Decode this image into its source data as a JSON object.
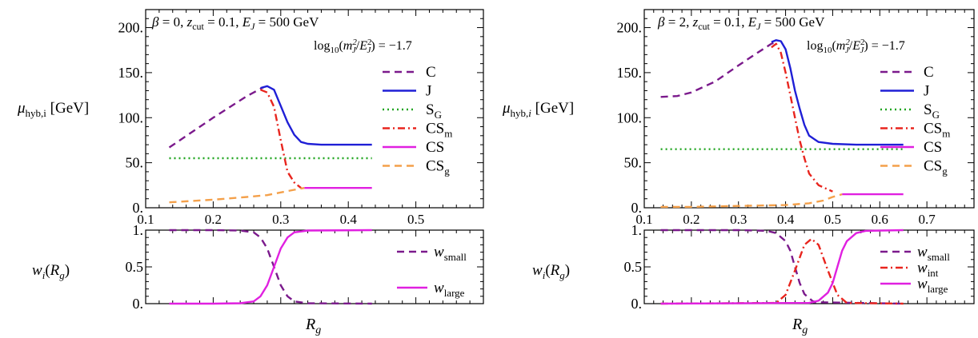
{
  "chart_data": [
    {
      "type": "line",
      "panel": "top",
      "title": "β = 0, z_cut = 0.1, E_J = 500 GeV",
      "annotation": "log10(m_J^2/E_J^2) = −1.7",
      "ylabel": "μ_hyb,i [GeV]",
      "xlim": [
        0.1,
        0.6
      ],
      "ylim": [
        0,
        220
      ],
      "xticks": [
        "0.1",
        "0.2",
        "0.3",
        "0.4",
        "0.5"
      ],
      "yticks": [
        "0.",
        "50.",
        "100.",
        "150.",
        "200."
      ],
      "legend_position": "right",
      "series": [
        {
          "name": "C",
          "color": "#7b1a8c",
          "dash": "dashed",
          "x": [
            0.135,
            0.2,
            0.25,
            0.275
          ],
          "y": [
            67,
            100,
            124,
            134
          ]
        },
        {
          "name": "J",
          "color": "#1f1fd6",
          "dash": "solid",
          "x": [
            0.27,
            0.28,
            0.29,
            0.3,
            0.31,
            0.32,
            0.33,
            0.34,
            0.36,
            0.4,
            0.435
          ],
          "y": [
            133,
            135,
            131,
            113,
            95,
            81,
            73,
            71,
            70,
            70,
            70
          ]
        },
        {
          "name": "S_G",
          "color": "#22a622",
          "dash": "dotted",
          "x": [
            0.135,
            0.435
          ],
          "y": [
            55,
            55
          ]
        },
        {
          "name": "CS_m",
          "color": "#e8251e",
          "dash": "dashdot",
          "x": [
            0.27,
            0.28,
            0.29,
            0.3,
            0.31,
            0.32,
            0.33
          ],
          "y": [
            131,
            128,
            112,
            75,
            40,
            28,
            22
          ]
        },
        {
          "name": "CS",
          "color": "#e020e0",
          "dash": "solid",
          "x": [
            0.335,
            0.435
          ],
          "y": [
            22,
            22
          ]
        },
        {
          "name": "CS_g",
          "color": "#f4a04a",
          "dash": "dashed",
          "x": [
            0.135,
            0.2,
            0.25,
            0.28,
            0.3,
            0.32,
            0.335
          ],
          "y": [
            6,
            9,
            12,
            14,
            17,
            20,
            22
          ]
        }
      ]
    },
    {
      "type": "line",
      "panel": "bottom",
      "ylabel": "w_i(R_g)",
      "xlabel": "R_g",
      "xlim": [
        0.1,
        0.6
      ],
      "ylim": [
        0,
        1
      ],
      "yticks": [
        "0.",
        "0.5",
        "1."
      ],
      "legend_position": "right",
      "series": [
        {
          "name": "w_small",
          "color": "#7b1a8c",
          "dash": "dashed",
          "x": [
            0.135,
            0.2,
            0.24,
            0.26,
            0.27,
            0.28,
            0.29,
            0.3,
            0.31,
            0.32,
            0.34,
            0.435
          ],
          "y": [
            1,
            1,
            0.995,
            0.97,
            0.9,
            0.75,
            0.5,
            0.25,
            0.1,
            0.03,
            0.005,
            0
          ]
        },
        {
          "name": "w_large",
          "color": "#e020e0",
          "dash": "solid",
          "x": [
            0.135,
            0.2,
            0.24,
            0.26,
            0.27,
            0.28,
            0.29,
            0.3,
            0.31,
            0.32,
            0.34,
            0.435
          ],
          "y": [
            0,
            0,
            0.005,
            0.03,
            0.1,
            0.25,
            0.5,
            0.75,
            0.9,
            0.97,
            0.995,
            1
          ]
        }
      ]
    },
    {
      "type": "line",
      "panel": "top",
      "title": "β = 2, z_cut = 0.1, E_J = 500 GeV",
      "annotation": "log10(m_J^2/E_J^2) = −1.7",
      "ylabel": "μ_hyb,i [GeV]",
      "xlim": [
        0.1,
        0.8
      ],
      "ylim": [
        0,
        220
      ],
      "xticks": [
        "0.1",
        "0.2",
        "0.3",
        "0.4",
        "0.5",
        "0.6",
        "0.7"
      ],
      "yticks": [
        "0.",
        "50.",
        "100.",
        "150.",
        "200."
      ],
      "legend_position": "right",
      "series": [
        {
          "name": "C",
          "color": "#7b1a8c",
          "dash": "dashed",
          "x": [
            0.135,
            0.17,
            0.2,
            0.25,
            0.3,
            0.34,
            0.37,
            0.38
          ],
          "y": [
            123,
            124,
            128,
            140,
            158,
            172,
            182,
            184
          ]
        },
        {
          "name": "J",
          "color": "#1f1fd6",
          "dash": "solid",
          "x": [
            0.37,
            0.38,
            0.39,
            0.4,
            0.41,
            0.42,
            0.43,
            0.44,
            0.45,
            0.47,
            0.5,
            0.55,
            0.65
          ],
          "y": [
            184,
            186,
            185,
            176,
            155,
            130,
            110,
            92,
            80,
            73,
            71,
            70,
            70
          ]
        },
        {
          "name": "S_G",
          "color": "#22a622",
          "dash": "dotted",
          "x": [
            0.135,
            0.65
          ],
          "y": [
            65,
            65
          ]
        },
        {
          "name": "CS_m",
          "color": "#e8251e",
          "dash": "dashdot",
          "x": [
            0.37,
            0.38,
            0.39,
            0.4,
            0.41,
            0.42,
            0.43,
            0.44,
            0.45,
            0.47,
            0.5
          ],
          "y": [
            178,
            182,
            172,
            150,
            125,
            100,
            75,
            55,
            38,
            25,
            18
          ]
        },
        {
          "name": "CS",
          "color": "#e020e0",
          "dash": "solid",
          "x": [
            0.52,
            0.65
          ],
          "y": [
            15,
            15
          ]
        },
        {
          "name": "CS_g",
          "color": "#f4a04a",
          "dash": "dashed",
          "x": [
            0.135,
            0.2,
            0.3,
            0.4,
            0.45,
            0.48,
            0.5,
            0.52
          ],
          "y": [
            1,
            1,
            2,
            3,
            5,
            8,
            12,
            15
          ]
        }
      ]
    },
    {
      "type": "line",
      "panel": "bottom",
      "ylabel": "w_i(R_g)",
      "xlabel": "R_g",
      "xlim": [
        0.1,
        0.8
      ],
      "ylim": [
        0,
        1
      ],
      "yticks": [
        "0.",
        "0.5",
        "1."
      ],
      "legend_position": "right",
      "series": [
        {
          "name": "w_small",
          "color": "#7b1a8c",
          "dash": "dashed",
          "x": [
            0.135,
            0.3,
            0.36,
            0.38,
            0.4,
            0.41,
            0.42,
            0.43,
            0.44,
            0.46,
            0.65
          ],
          "y": [
            1,
            1,
            0.99,
            0.96,
            0.85,
            0.72,
            0.5,
            0.28,
            0.13,
            0.02,
            0
          ]
        },
        {
          "name": "w_int",
          "color": "#e8251e",
          "dash": "dashdot",
          "x": [
            0.135,
            0.38,
            0.4,
            0.42,
            0.44,
            0.455,
            0.47,
            0.49,
            0.51,
            0.53,
            0.65
          ],
          "y": [
            0,
            0.01,
            0.12,
            0.45,
            0.8,
            0.88,
            0.8,
            0.45,
            0.12,
            0.01,
            0
          ]
        },
        {
          "name": "w_large",
          "color": "#e020e0",
          "dash": "solid",
          "x": [
            0.135,
            0.45,
            0.47,
            0.49,
            0.5,
            0.51,
            0.52,
            0.53,
            0.55,
            0.57,
            0.65
          ],
          "y": [
            0,
            0.01,
            0.04,
            0.15,
            0.28,
            0.5,
            0.72,
            0.85,
            0.96,
            0.99,
            1
          ]
        }
      ]
    }
  ],
  "labels": {
    "beta0": "0",
    "beta2": "2",
    "zcut": "0.1",
    "ej": "500 GeV",
    "log_value": "−1.7",
    "gev": "[GeV]",
    "legend_top": [
      "C",
      "J",
      "S",
      "CS",
      "CS",
      "CS"
    ],
    "legend_top_sub": [
      "",
      "",
      "G",
      "m",
      "",
      "g"
    ],
    "wsmall_sub": "small",
    "wint_sub": "int",
    "wlarge_sub": "large"
  }
}
